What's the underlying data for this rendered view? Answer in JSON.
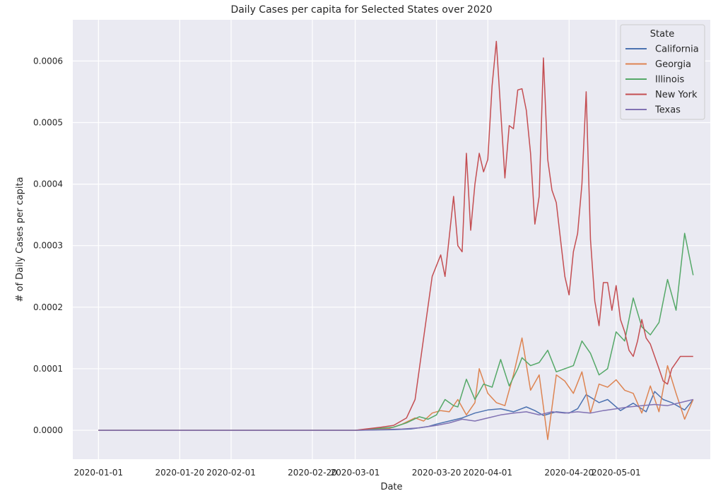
{
  "chart_data": {
    "type": "line",
    "title": "Daily Cases per capita for Selected States over 2020",
    "xlabel": "Date",
    "ylabel": "# of Daily Cases per capita",
    "x_start": "2020-01-01",
    "x_ticks": [
      "2020-01-01",
      "2020-01-20",
      "2020-02-01",
      "2020-02-20",
      "2020-03-01",
      "2020-03-20",
      "2020-04-01",
      "2020-04-20",
      "2020-05-01"
    ],
    "x_tick_labels": [
      "2020-01-01",
      "2020-01-20",
      "2020-02-01",
      "2020-02-20",
      "2020-03-01",
      "2020-03-20",
      "2020-04-01",
      "2020-04-20",
      "2020-05-01"
    ],
    "xlim": [
      "2019-12-26",
      "2020-05-23"
    ],
    "y_ticks": [
      0,
      0.0001,
      0.0002,
      0.0003,
      0.0004,
      0.0005,
      0.0006
    ],
    "y_tick_labels": [
      "0.0000",
      "0.0001",
      "0.0002",
      "0.0003",
      "0.0004",
      "0.0005",
      "0.0006"
    ],
    "ylim": [
      -4.7e-05,
      0.000667
    ],
    "grid": true,
    "legend": {
      "title": "State",
      "placement": "top-right"
    },
    "series": [
      {
        "name": "California",
        "color": "#4c72b0",
        "x": [
          "2020-01-01",
          "2020-03-01",
          "2020-03-10",
          "2020-03-14",
          "2020-03-18",
          "2020-03-20",
          "2020-03-23",
          "2020-03-26",
          "2020-03-29",
          "2020-04-01",
          "2020-04-04",
          "2020-04-07",
          "2020-04-10",
          "2020-04-12",
          "2020-04-14",
          "2020-04-17",
          "2020-04-20",
          "2020-04-22",
          "2020-04-24",
          "2020-04-27",
          "2020-04-29",
          "2020-05-02",
          "2020-05-05",
          "2020-05-08",
          "2020-05-10",
          "2020-05-12",
          "2020-05-14",
          "2020-05-17",
          "2020-05-19"
        ],
        "y": [
          0,
          0,
          1e-06,
          2e-06,
          6e-06,
          1e-05,
          1.5e-05,
          2e-05,
          2.8e-05,
          3.3e-05,
          3.5e-05,
          3e-05,
          3.8e-05,
          3.2e-05,
          2.4e-05,
          3e-05,
          2.8e-05,
          3.5e-05,
          5.8e-05,
          4.5e-05,
          5e-05,
          3.2e-05,
          4.4e-05,
          3e-05,
          6.3e-05,
          5e-05,
          4.5e-05,
          3.3e-05,
          5e-05
        ]
      },
      {
        "name": "Georgia",
        "color": "#dd8452",
        "x": [
          "2020-01-01",
          "2020-03-01",
          "2020-03-09",
          "2020-03-12",
          "2020-03-15",
          "2020-03-17",
          "2020-03-19",
          "2020-03-21",
          "2020-03-23",
          "2020-03-25",
          "2020-03-27",
          "2020-03-29",
          "2020-03-30",
          "2020-04-01",
          "2020-04-03",
          "2020-04-05",
          "2020-04-07",
          "2020-04-09",
          "2020-04-11",
          "2020-04-13",
          "2020-04-15",
          "2020-04-17",
          "2020-04-19",
          "2020-04-21",
          "2020-04-23",
          "2020-04-25",
          "2020-04-27",
          "2020-04-29",
          "2020-05-01",
          "2020-05-03",
          "2020-05-05",
          "2020-05-07",
          "2020-05-09",
          "2020-05-11",
          "2020-05-13",
          "2020-05-15",
          "2020-05-17",
          "2020-05-19"
        ],
        "y": [
          0,
          0,
          3e-06,
          1e-05,
          2e-05,
          1.5e-05,
          2.8e-05,
          3.2e-05,
          3e-05,
          5e-05,
          2.5e-05,
          4.5e-05,
          0.0001,
          6e-05,
          4.5e-05,
          4e-05,
          9e-05,
          0.00015,
          6.5e-05,
          9e-05,
          -1.5e-05,
          9e-05,
          8e-05,
          6e-05,
          9.5e-05,
          2.8e-05,
          7.5e-05,
          7e-05,
          8.2e-05,
          6.5e-05,
          6e-05,
          2.8e-05,
          7.2e-05,
          3e-05,
          0.000105,
          6e-05,
          1.8e-05,
          5e-05
        ]
      },
      {
        "name": "Illinois",
        "color": "#55a868",
        "x": [
          "2020-01-01",
          "2020-03-01",
          "2020-03-10",
          "2020-03-13",
          "2020-03-16",
          "2020-03-18",
          "2020-03-20",
          "2020-03-22",
          "2020-03-24",
          "2020-03-25",
          "2020-03-27",
          "2020-03-29",
          "2020-03-31",
          "2020-04-02",
          "2020-04-04",
          "2020-04-06",
          "2020-04-08",
          "2020-04-09",
          "2020-04-11",
          "2020-04-13",
          "2020-04-15",
          "2020-04-17",
          "2020-04-19",
          "2020-04-21",
          "2020-04-23",
          "2020-04-25",
          "2020-04-27",
          "2020-04-29",
          "2020-05-01",
          "2020-05-03",
          "2020-05-05",
          "2020-05-07",
          "2020-05-09",
          "2020-05-11",
          "2020-05-13",
          "2020-05-15",
          "2020-05-17",
          "2020-05-19"
        ],
        "y": [
          0,
          0,
          5e-06,
          1.2e-05,
          2.2e-05,
          1.8e-05,
          2.5e-05,
          5e-05,
          4e-05,
          3.8e-05,
          8.3e-05,
          5e-05,
          7.5e-05,
          7e-05,
          0.000115,
          7.2e-05,
          0.0001,
          0.000118,
          0.000105,
          0.00011,
          0.00013,
          9.5e-05,
          0.0001,
          0.000105,
          0.000145,
          0.000125,
          9e-05,
          0.0001,
          0.00016,
          0.000145,
          0.000215,
          0.000168,
          0.000155,
          0.000175,
          0.000245,
          0.000195,
          0.00032,
          0.000252
        ]
      },
      {
        "name": "New York",
        "color": "#c44e52",
        "x": [
          "2020-01-01",
          "2020-03-01",
          "2020-03-07",
          "2020-03-10",
          "2020-03-13",
          "2020-03-15",
          "2020-03-17",
          "2020-03-19",
          "2020-03-21",
          "2020-03-22",
          "2020-03-24",
          "2020-03-25",
          "2020-03-26",
          "2020-03-27",
          "2020-03-28",
          "2020-03-29",
          "2020-03-30",
          "2020-03-31",
          "2020-04-01",
          "2020-04-02",
          "2020-04-03",
          "2020-04-05",
          "2020-04-06",
          "2020-04-07",
          "2020-04-08",
          "2020-04-09",
          "2020-04-10",
          "2020-04-11",
          "2020-04-12",
          "2020-04-13",
          "2020-04-14",
          "2020-04-15",
          "2020-04-16",
          "2020-04-17",
          "2020-04-18",
          "2020-04-19",
          "2020-04-20",
          "2020-04-21",
          "2020-04-22",
          "2020-04-23",
          "2020-04-24",
          "2020-04-25",
          "2020-04-26",
          "2020-04-27",
          "2020-04-28",
          "2020-04-29",
          "2020-04-30",
          "2020-05-01",
          "2020-05-02",
          "2020-05-03",
          "2020-05-04",
          "2020-05-05",
          "2020-05-06",
          "2020-05-07",
          "2020-05-08",
          "2020-05-09",
          "2020-05-10",
          "2020-05-11",
          "2020-05-12",
          "2020-05-13",
          "2020-05-14",
          "2020-05-15",
          "2020-05-16",
          "2020-05-17",
          "2020-05-18",
          "2020-05-19"
        ],
        "y": [
          0,
          0,
          5e-06,
          8e-06,
          2e-05,
          5e-05,
          0.00015,
          0.00025,
          0.000285,
          0.00025,
          0.00038,
          0.0003,
          0.00029,
          0.00045,
          0.000325,
          0.0004,
          0.00045,
          0.00042,
          0.00044,
          0.00056,
          0.000632,
          0.00041,
          0.000495,
          0.00049,
          0.000553,
          0.000555,
          0.00052,
          0.00045,
          0.000335,
          0.00038,
          0.000605,
          0.00044,
          0.00039,
          0.00037,
          0.00031,
          0.00025,
          0.00022,
          0.00029,
          0.00032,
          0.0004,
          0.00055,
          0.00031,
          0.00021,
          0.00017,
          0.00024,
          0.00024,
          0.000195,
          0.000235,
          0.00018,
          0.00016,
          0.00013,
          0.00012,
          0.000145,
          0.00018,
          0.00015,
          0.00014,
          0.00012,
          0.0001,
          8e-05,
          7.5e-05,
          0.0001,
          0.00011,
          0.00012,
          0.00012,
          0.00012,
          0.00012
        ]
      },
      {
        "name": "Texas",
        "color": "#8172b3",
        "x": [
          "2020-01-01",
          "2020-03-01",
          "2020-03-12",
          "2020-03-16",
          "2020-03-20",
          "2020-03-23",
          "2020-03-26",
          "2020-03-29",
          "2020-04-01",
          "2020-04-04",
          "2020-04-07",
          "2020-04-10",
          "2020-04-13",
          "2020-04-16",
          "2020-04-19",
          "2020-04-22",
          "2020-04-25",
          "2020-04-28",
          "2020-05-01",
          "2020-05-04",
          "2020-05-07",
          "2020-05-10",
          "2020-05-13",
          "2020-05-16",
          "2020-05-19"
        ],
        "y": [
          0,
          0,
          2e-06,
          4e-06,
          8e-06,
          1.2e-05,
          1.8e-05,
          1.5e-05,
          2e-05,
          2.5e-05,
          2.8e-05,
          3e-05,
          2.5e-05,
          3e-05,
          2.8e-05,
          3e-05,
          2.8e-05,
          3.2e-05,
          3.5e-05,
          3.8e-05,
          4e-05,
          4.2e-05,
          4e-05,
          4.5e-05,
          5e-05
        ]
      }
    ]
  }
}
